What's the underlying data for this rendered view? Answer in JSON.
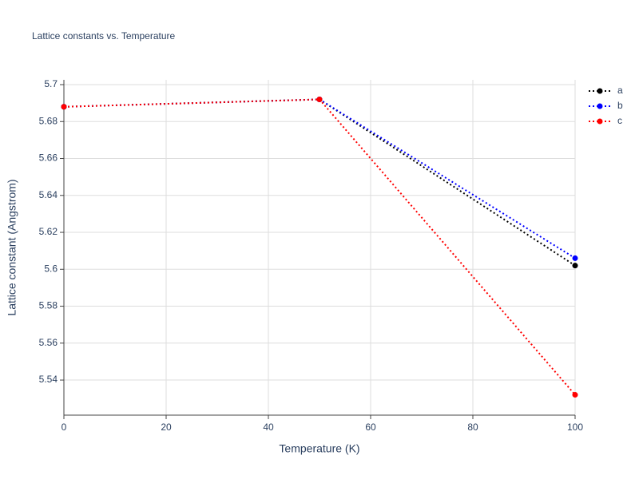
{
  "chart_data": {
    "type": "line",
    "title": "Lattice constants vs. Temperature",
    "x_label": "Temperature (K)",
    "y_label": "Lattice constant (Angstrom)",
    "x": [
      0,
      50,
      100
    ],
    "series": [
      {
        "name": "a",
        "color": "#000000",
        "values": [
          5.688,
          5.692,
          5.602
        ]
      },
      {
        "name": "b",
        "color": "#0000ff",
        "values": [
          5.688,
          5.692,
          5.606
        ]
      },
      {
        "name": "c",
        "color": "#ff0000",
        "values": [
          5.688,
          5.692,
          5.532
        ]
      }
    ],
    "xlim": [
      0,
      100
    ],
    "xticks": [
      0,
      20,
      40,
      60,
      80,
      100
    ],
    "ylim": [
      5.521,
      5.7026
    ],
    "yticks": [
      5.54,
      5.56,
      5.58,
      5.6,
      5.62,
      5.64,
      5.66,
      5.68,
      5.7
    ],
    "grid": true,
    "legend": "top-right"
  }
}
